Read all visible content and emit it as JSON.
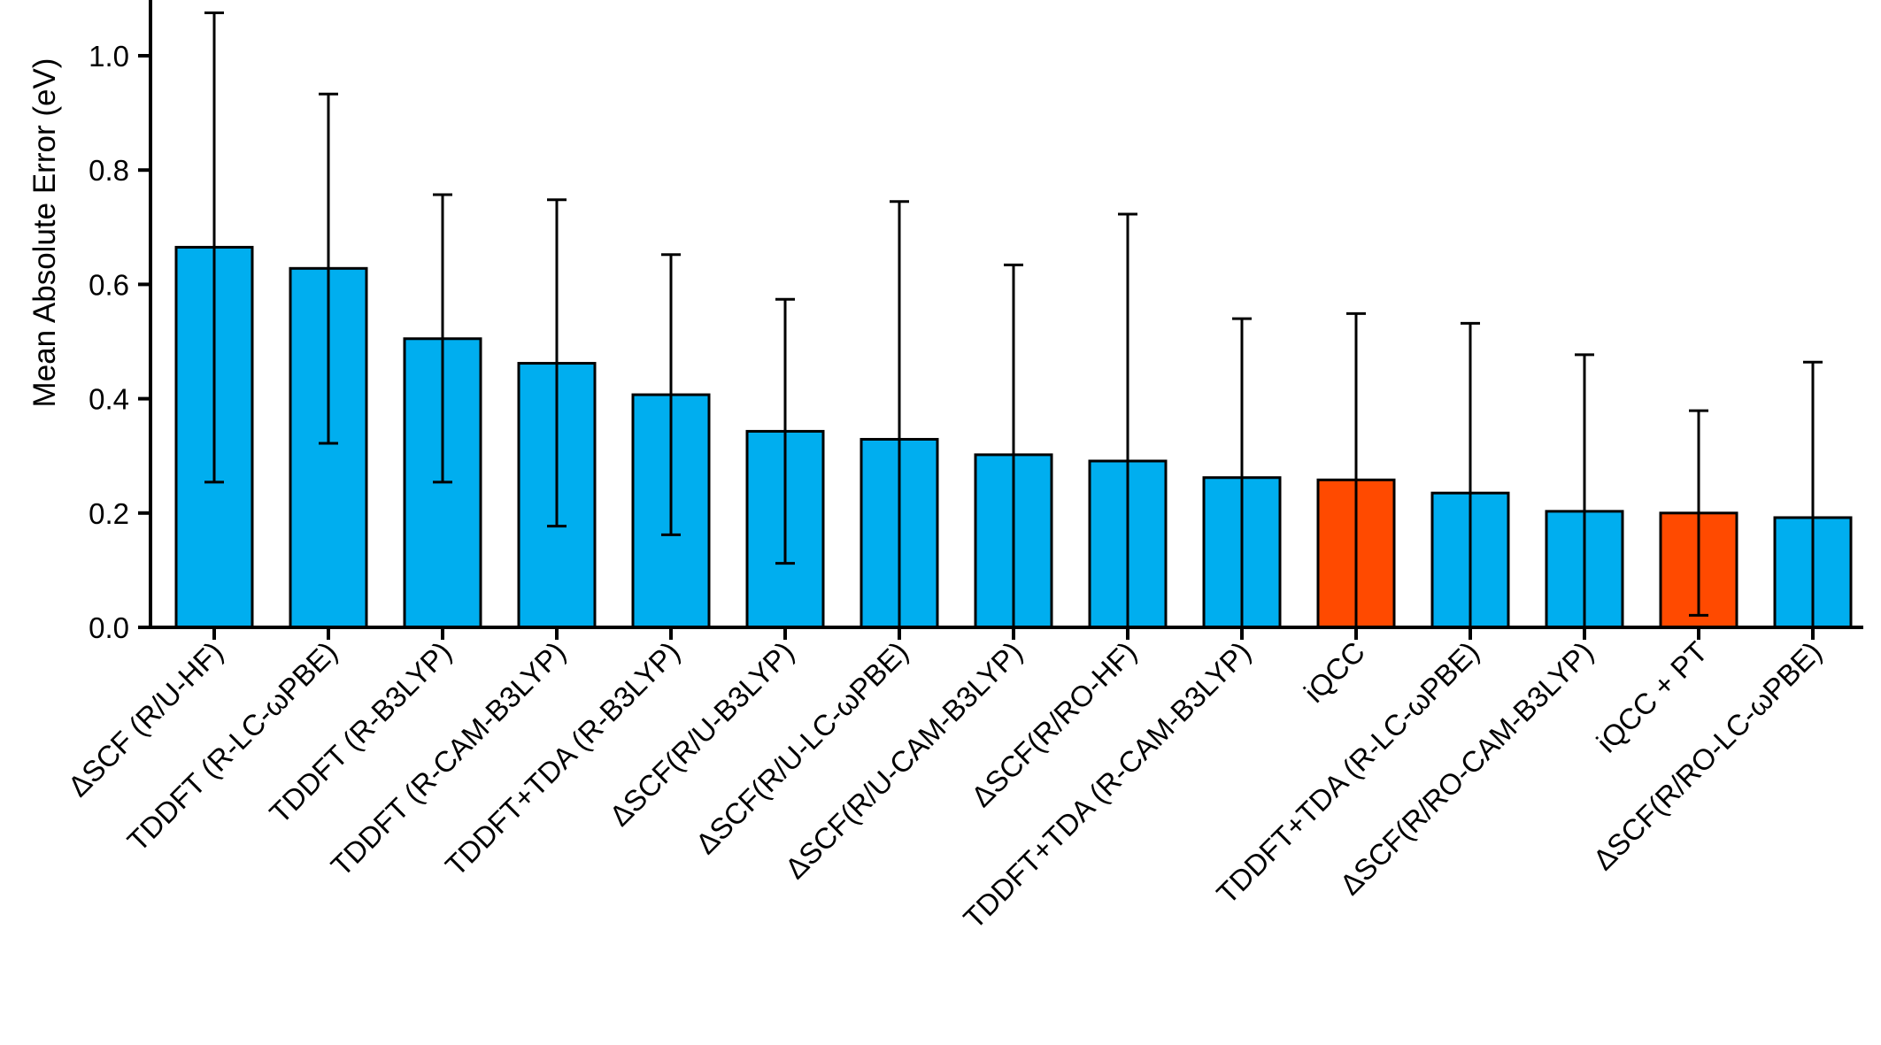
{
  "chart_data": {
    "type": "bar",
    "ylabel": "Mean Absolute Error (eV)",
    "ylim": [
      0,
      1.1
    ],
    "yticks": [
      0.0,
      0.2,
      0.4,
      0.6,
      0.8,
      1.0
    ],
    "ytick_labels": [
      "0.0",
      "0.2",
      "0.4",
      "0.6",
      "0.8",
      "1.0"
    ],
    "categories": [
      "ΔSCF (R/U-HF)",
      "TDDFT (R-LC-ωPBE)",
      "TDDFT (R-B3LYP)",
      "TDDFT (R-CAM-B3LYP)",
      "TDDFT+TDA (R-B3LYP)",
      "ΔSCF(R/U-B3LYP)",
      "ΔSCF(R/U-LC-ωPBE)",
      "ΔSCF(R/U-CAM-B3LYP)",
      "ΔSCF(R/RO-HF)",
      "TDDFT+TDA (R-CAM-B3LYP)",
      "iQCC",
      "TDDFT+TDA (R-LC-ωPBE)",
      "ΔSCF(R/RO-CAM-B3LYP)",
      "iQCC + PT",
      "ΔSCF(R/RO-LC-ωPBE)"
    ],
    "values": [
      0.665,
      0.628,
      0.505,
      0.462,
      0.407,
      0.343,
      0.329,
      0.302,
      0.291,
      0.262,
      0.258,
      0.235,
      0.203,
      0.2,
      0.192
    ],
    "error_upper": [
      1.075,
      0.933,
      0.757,
      0.748,
      0.652,
      0.574,
      0.745,
      0.634,
      0.723,
      0.54,
      0.549,
      0.532,
      0.477,
      0.379,
      0.464
    ],
    "error_lower": [
      0.254,
      0.322,
      0.254,
      0.177,
      0.162,
      0.112,
      null,
      null,
      null,
      null,
      null,
      null,
      null,
      0.021,
      null
    ],
    "highlight": [
      false,
      false,
      false,
      false,
      false,
      false,
      false,
      false,
      false,
      false,
      true,
      false,
      false,
      true,
      false
    ],
    "colors": {
      "default": "#00aeef",
      "highlight": "#ff4a00",
      "stroke": "#000000"
    },
    "grid": false,
    "legend": "none"
  }
}
